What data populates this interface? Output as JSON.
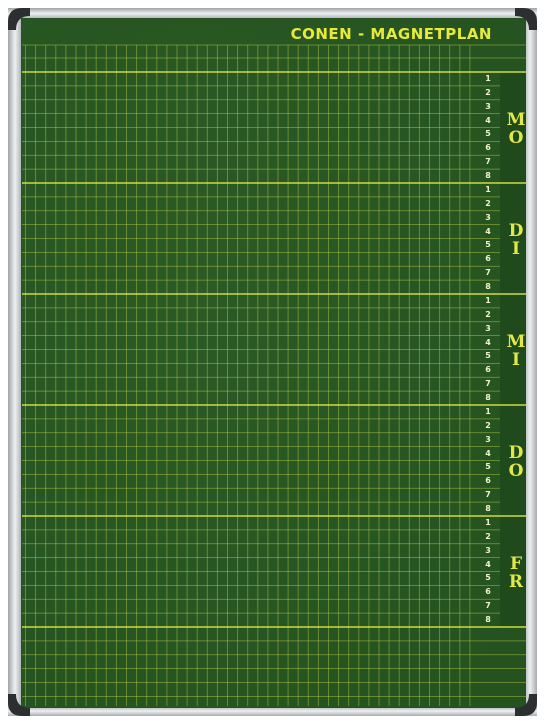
{
  "title": "CONEN - MAGNETPLAN",
  "days": [
    {
      "label": "MO",
      "slots": [
        1,
        2,
        3,
        4,
        5,
        6,
        7,
        8
      ]
    },
    {
      "label": "DI",
      "slots": [
        1,
        2,
        3,
        4,
        5,
        6,
        7,
        8
      ]
    },
    {
      "label": "MI",
      "slots": [
        1,
        2,
        3,
        4,
        5,
        6,
        7,
        8
      ]
    },
    {
      "label": "DO",
      "slots": [
        1,
        2,
        3,
        4,
        5,
        6,
        7,
        8
      ]
    },
    {
      "label": "FR",
      "slots": [
        1,
        2,
        3,
        4,
        5,
        6,
        7,
        8
      ]
    }
  ]
}
